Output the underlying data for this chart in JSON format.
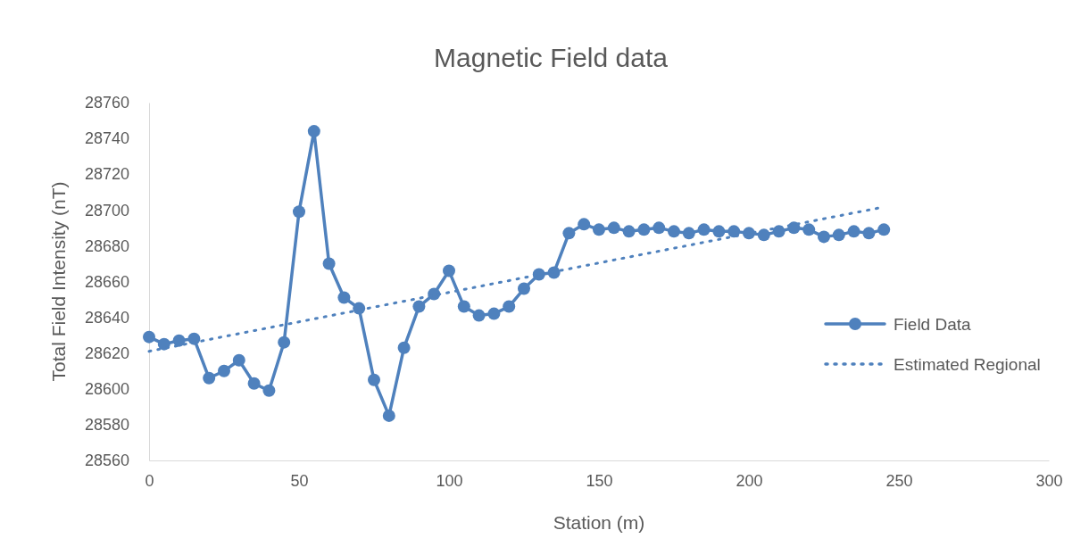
{
  "chart_data": {
    "type": "line",
    "title": "Magnetic Field data",
    "xlabel": "Station (m)",
    "ylabel": "Total Field Intensity (nT)",
    "xlim": [
      0,
      300
    ],
    "xticks": [
      0,
      50,
      100,
      150,
      200,
      250,
      300
    ],
    "ylim": [
      28560,
      28760
    ],
    "yticks": [
      28560,
      28580,
      28600,
      28620,
      28640,
      28660,
      28680,
      28700,
      28720,
      28740,
      28760
    ],
    "grid": false,
    "legend": "right",
    "series": [
      {
        "name": "Field Data",
        "color": "#4f81bd",
        "marker": "circle",
        "line_style": "solid",
        "x": [
          0,
          5,
          10,
          15,
          20,
          25,
          30,
          35,
          40,
          45,
          50,
          55,
          60,
          65,
          70,
          75,
          80,
          85,
          90,
          95,
          100,
          105,
          110,
          115,
          120,
          125,
          130,
          135,
          140,
          145,
          150,
          155,
          160,
          165,
          170,
          175,
          180,
          185,
          190,
          195,
          200,
          205,
          210,
          215,
          220,
          225,
          230,
          235,
          240,
          245
        ],
        "values": [
          28629,
          28625,
          28627,
          28628,
          28606,
          28610,
          28616,
          28603,
          28599,
          28626,
          28699,
          28744,
          28670,
          28651,
          28645,
          28605,
          28585,
          28623,
          28646,
          28653,
          28666,
          28646,
          28641,
          28642,
          28646,
          28656,
          28664,
          28665,
          28687,
          28692,
          28689,
          28690,
          28688,
          28689,
          28690,
          28688,
          28687,
          28689,
          28688,
          28688,
          28687,
          28686,
          28688,
          28690,
          28689,
          28685,
          28686,
          28688,
          28687,
          28689
        ]
      },
      {
        "name": "Estimated Regional",
        "color": "#4f81bd",
        "marker": "none",
        "line_style": "dotted",
        "x": [
          0,
          243
        ],
        "values": [
          28621,
          28701
        ]
      }
    ]
  }
}
